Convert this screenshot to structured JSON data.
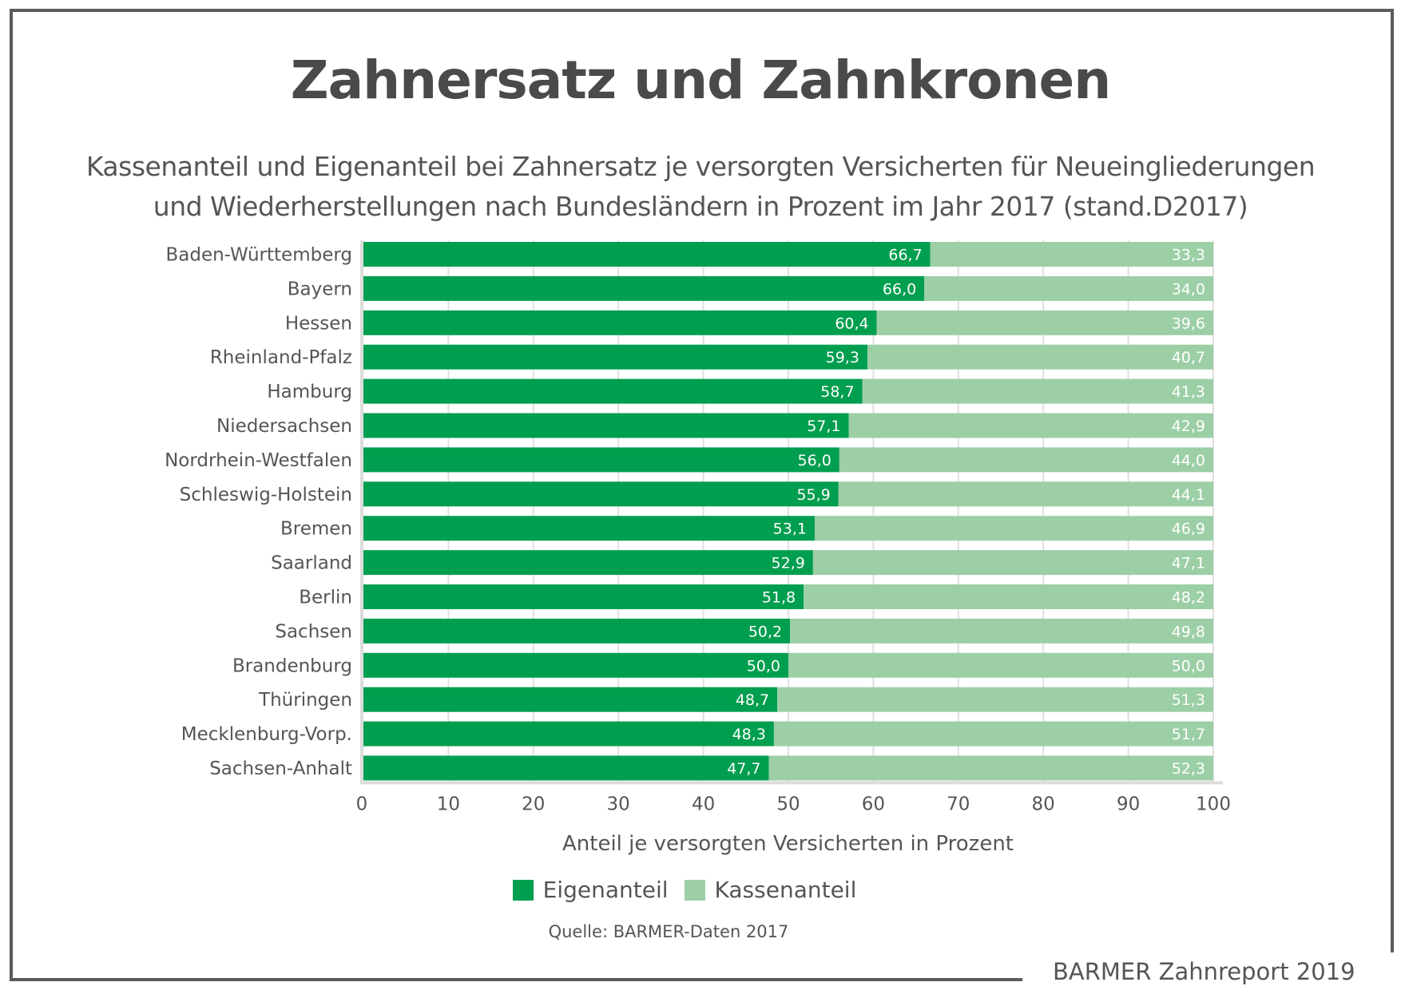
{
  "title": "Zahnersatz und Zahnkronen",
  "subtitle_lines": [
    "Kassenanteil und Eigenanteil bei Zahnersatz je versorgten Versicherten für Neueingliederungen",
    "und Wiederherstellungen nach Bundesländern in Prozent im Jahr 2017 (stand.D2017)"
  ],
  "source": "Quelle: BARMER-Daten 2017",
  "footer": "BARMER Zahnreport 2019",
  "colors": {
    "eigenanteil": "#009e4f",
    "kassenanteil": "#9ccfa6",
    "grid": "#e0e0e0",
    "axis": "#dcdcdc",
    "frame": "#5b5b5b"
  },
  "chart_data": {
    "type": "bar",
    "orientation": "horizontal",
    "stacked": true,
    "title": "Zahnersatz und Zahnkronen",
    "xlabel": "Anteil je versorgten Versicherten in Prozent",
    "ylabel": "",
    "xlim": [
      0,
      100
    ],
    "x_ticks": [
      "0",
      "10",
      "20",
      "30",
      "40",
      "50",
      "60",
      "70",
      "80",
      "90",
      "100"
    ],
    "grid": true,
    "legend_position": "bottom",
    "categories": [
      "Baden-Württemberg",
      "Bayern",
      "Hessen",
      "Rheinland-Pfalz",
      "Hamburg",
      "Niedersachsen",
      "Nordrhein-Westfalen",
      "Schleswig-Holstein",
      "Bremen",
      "Saarland",
      "Berlin",
      "Sachsen",
      "Brandenburg",
      "Thüringen",
      "Mecklenburg-Vorp.",
      "Sachsen-Anhalt"
    ],
    "series": [
      {
        "name": "Eigenanteil",
        "values": [
          66.7,
          66.0,
          60.4,
          59.3,
          58.7,
          57.1,
          56.0,
          55.9,
          53.1,
          52.9,
          51.8,
          50.2,
          50.0,
          48.7,
          48.3,
          47.7
        ],
        "labels": [
          "66,7",
          "66,0",
          "60,4",
          "59,3",
          "58,7",
          "57,1",
          "56,0",
          "55,9",
          "53,1",
          "52,9",
          "51,8",
          "50,2",
          "50,0",
          "48,7",
          "48,3",
          "47,7"
        ]
      },
      {
        "name": "Kassenanteil",
        "values": [
          33.3,
          34.0,
          39.6,
          40.7,
          41.3,
          42.9,
          44.0,
          44.1,
          46.9,
          47.1,
          48.2,
          49.8,
          50.0,
          51.3,
          51.7,
          52.3
        ],
        "labels": [
          "33,3",
          "34,0",
          "39,6",
          "40,7",
          "41,3",
          "42,9",
          "44,0",
          "44,1",
          "46,9",
          "47,1",
          "48,2",
          "49,8",
          "50,0",
          "51,3",
          "51,7",
          "52,3"
        ]
      }
    ]
  }
}
